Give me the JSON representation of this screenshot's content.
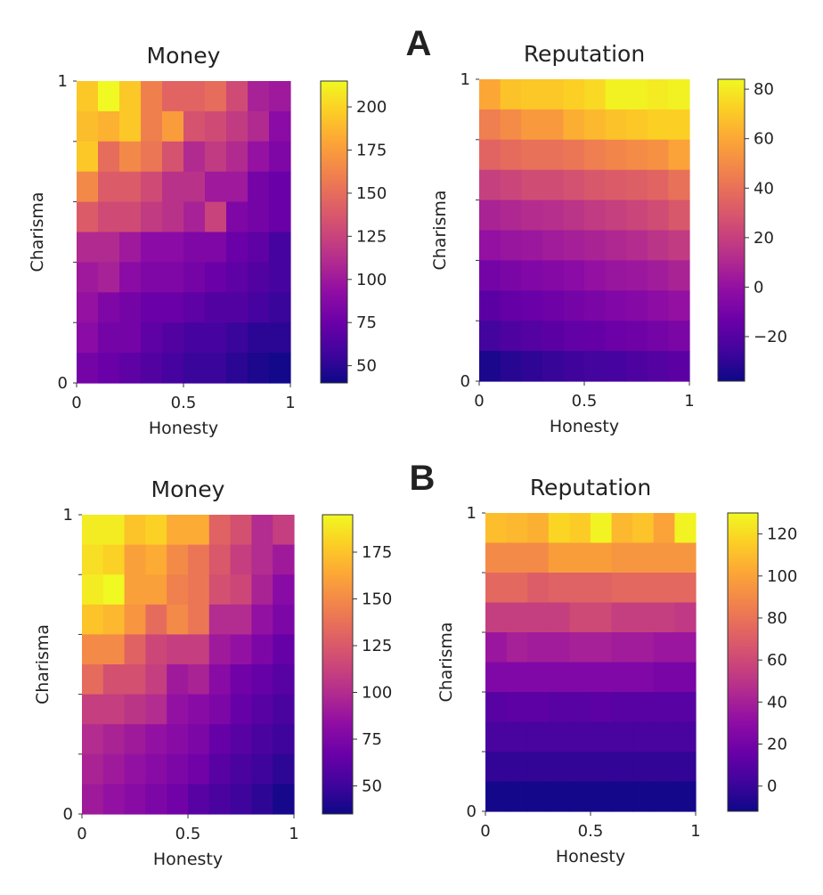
{
  "panel_labels": [
    "A",
    "B"
  ],
  "chart_data": [
    {
      "type": "heatmap",
      "panel": "A",
      "title": "Money",
      "xlabel": "Honesty",
      "ylabel": "Charisma",
      "x_tick_labels": [
        "0",
        "0.5",
        "1"
      ],
      "y_tick_labels": [
        "0",
        "1"
      ],
      "xlim": [
        0,
        1
      ],
      "ylim": [
        0,
        1
      ],
      "colormap": "plasma",
      "color_range": [
        40,
        215
      ],
      "colorbar_ticks": [
        "200",
        "175",
        "150",
        "125",
        "100",
        "75",
        "50"
      ],
      "colorbar_tick_values": [
        200,
        175,
        150,
        125,
        100,
        75,
        50
      ],
      "rows_top_to_bottom": [
        [
          195,
          215,
          195,
          160,
          145,
          145,
          150,
          130,
          105,
          100
        ],
        [
          190,
          185,
          195,
          160,
          175,
          135,
          130,
          120,
          110,
          90
        ],
        [
          195,
          150,
          165,
          155,
          135,
          110,
          120,
          110,
          95,
          85
        ],
        [
          165,
          140,
          140,
          130,
          115,
          115,
          100,
          100,
          80,
          75
        ],
        [
          140,
          130,
          130,
          120,
          115,
          105,
          125,
          85,
          80,
          75
        ],
        [
          110,
          110,
          100,
          90,
          90,
          85,
          85,
          75,
          70,
          60
        ],
        [
          100,
          105,
          90,
          85,
          85,
          80,
          75,
          70,
          65,
          60
        ],
        [
          95,
          85,
          80,
          75,
          75,
          70,
          65,
          65,
          60,
          55
        ],
        [
          90,
          80,
          80,
          70,
          65,
          60,
          60,
          55,
          50,
          50
        ],
        [
          80,
          75,
          70,
          65,
          60,
          55,
          55,
          50,
          45,
          42
        ]
      ]
    },
    {
      "type": "heatmap",
      "panel": "A",
      "title": "Reputation",
      "xlabel": "Honesty",
      "ylabel": "Charisma",
      "x_tick_labels": [
        "0",
        "0.5",
        "1"
      ],
      "y_tick_labels": [
        "0",
        "1"
      ],
      "xlim": [
        0,
        1
      ],
      "ylim": [
        0,
        1
      ],
      "colormap": "plasma",
      "color_range": [
        -38,
        84
      ],
      "colorbar_ticks": [
        "80",
        "60",
        "40",
        "20",
        "0",
        "−20"
      ],
      "colorbar_tick_values": [
        80,
        60,
        40,
        20,
        0,
        -20
      ],
      "rows_top_to_bottom": [
        [
          60,
          68,
          70,
          70,
          72,
          75,
          82,
          82,
          80,
          82
        ],
        [
          45,
          50,
          55,
          55,
          62,
          65,
          68,
          70,
          72,
          72
        ],
        [
          35,
          38,
          40,
          40,
          42,
          45,
          48,
          50,
          52,
          58
        ],
        [
          20,
          22,
          25,
          25,
          27,
          30,
          32,
          33,
          35,
          40
        ],
        [
          8,
          10,
          12,
          13,
          15,
          18,
          20,
          22,
          25,
          30
        ],
        [
          0,
          2,
          3,
          5,
          6,
          8,
          10,
          12,
          15,
          18
        ],
        [
          -10,
          -8,
          -6,
          -5,
          -3,
          0,
          2,
          3,
          5,
          8
        ],
        [
          -18,
          -15,
          -14,
          -12,
          -10,
          -8,
          -6,
          -5,
          -2,
          0
        ],
        [
          -25,
          -22,
          -20,
          -18,
          -16,
          -15,
          -13,
          -12,
          -10,
          -8
        ],
        [
          -35,
          -32,
          -30,
          -28,
          -26,
          -25,
          -24,
          -22,
          -20,
          -18
        ]
      ]
    },
    {
      "type": "heatmap",
      "panel": "B",
      "title": "Money",
      "xlabel": "Honesty",
      "ylabel": "Charisma",
      "x_tick_labels": [
        "0",
        "0.5",
        "1"
      ],
      "y_tick_labels": [
        "0",
        "1"
      ],
      "xlim": [
        0,
        1
      ],
      "ylim": [
        0,
        1
      ],
      "colormap": "plasma",
      "color_range": [
        35,
        195
      ],
      "colorbar_ticks": [
        "175",
        "150",
        "125",
        "100",
        "75",
        "50"
      ],
      "colorbar_tick_values": [
        175,
        150,
        125,
        100,
        75,
        50
      ],
      "rows_top_to_bottom": [
        [
          190,
          190,
          175,
          180,
          165,
          165,
          130,
          120,
          100,
          110
        ],
        [
          185,
          180,
          160,
          165,
          150,
          140,
          125,
          110,
          100,
          90
        ],
        [
          190,
          195,
          160,
          160,
          145,
          140,
          120,
          115,
          95,
          80
        ],
        [
          175,
          170,
          155,
          135,
          150,
          140,
          100,
          100,
          85,
          75
        ],
        [
          150,
          150,
          130,
          115,
          110,
          110,
          90,
          85,
          75,
          65
        ],
        [
          135,
          120,
          120,
          110,
          90,
          95,
          80,
          70,
          65,
          60
        ],
        [
          110,
          110,
          105,
          100,
          85,
          80,
          75,
          65,
          60,
          55
        ],
        [
          100,
          95,
          90,
          85,
          80,
          75,
          65,
          60,
          55,
          50
        ],
        [
          95,
          90,
          85,
          80,
          75,
          70,
          60,
          55,
          50,
          45
        ],
        [
          90,
          85,
          80,
          75,
          70,
          60,
          55,
          50,
          45,
          38
        ]
      ]
    },
    {
      "type": "heatmap",
      "panel": "B",
      "title": "Reputation",
      "xlabel": "Honesty",
      "ylabel": "Charisma",
      "x_tick_labels": [
        "0",
        "0.5",
        "1"
      ],
      "y_tick_labels": [
        "0",
        "1"
      ],
      "xlim": [
        0,
        1
      ],
      "ylim": [
        0,
        1
      ],
      "colormap": "plasma",
      "color_range": [
        -12,
        130
      ],
      "colorbar_ticks": [
        "120",
        "100",
        "80",
        "60",
        "40",
        "20",
        "0"
      ],
      "colorbar_tick_values": [
        120,
        100,
        80,
        60,
        40,
        20,
        0
      ],
      "rows_top_to_bottom": [
        [
          110,
          108,
          105,
          118,
          115,
          128,
          108,
          112,
          100,
          128
        ],
        [
          90,
          90,
          90,
          98,
          98,
          98,
          95,
          95,
          95,
          95
        ],
        [
          75,
          75,
          70,
          72,
          72,
          72,
          75,
          75,
          75,
          75
        ],
        [
          55,
          55,
          55,
          55,
          60,
          60,
          55,
          55,
          55,
          52
        ],
        [
          35,
          40,
          38,
          38,
          40,
          40,
          38,
          38,
          35,
          35
        ],
        [
          25,
          25,
          25,
          25,
          25,
          25,
          25,
          25,
          22,
          22
        ],
        [
          10,
          12,
          12,
          10,
          10,
          12,
          10,
          10,
          10,
          10
        ],
        [
          5,
          5,
          5,
          5,
          5,
          5,
          5,
          5,
          5,
          5
        ],
        [
          -2,
          -2,
          -2,
          -2,
          -2,
          -2,
          -2,
          -2,
          -2,
          -2
        ],
        [
          -10,
          -10,
          -10,
          -10,
          -10,
          -10,
          -10,
          -10,
          -10,
          -10
        ]
      ]
    }
  ]
}
